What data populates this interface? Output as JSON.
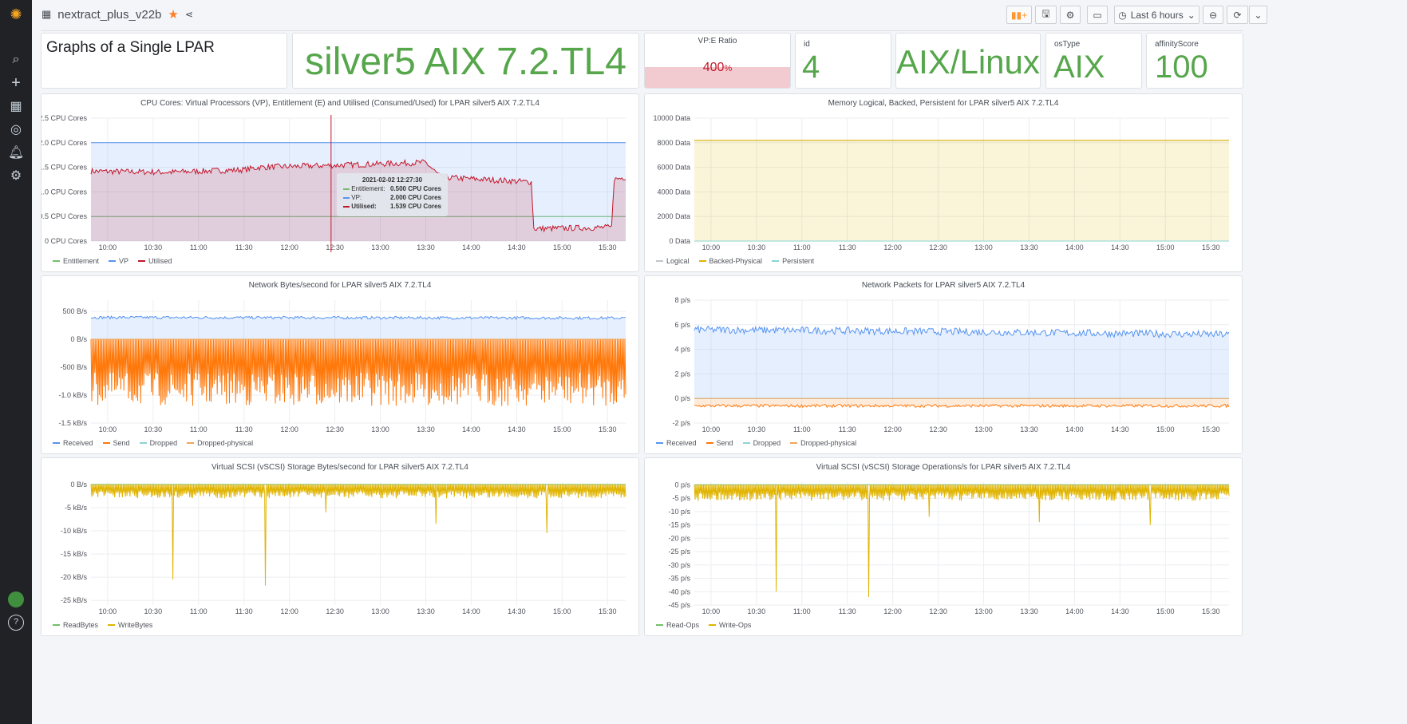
{
  "header": {
    "dashboard_title": "nextract_plus_v22b",
    "time_range": "Last 6 hours"
  },
  "sidebar": {
    "icons": [
      "grafana-logo",
      "search-icon",
      "plus-icon",
      "dashboards-icon",
      "explore-icon",
      "alert-bell-icon",
      "gear-icon",
      "user-avatar",
      "help-icon"
    ]
  },
  "stats": {
    "text_panel": "Graphs of a Single LPAR",
    "lpar_name": "silver5 AIX 7.2.TL4",
    "vpe_title": "VP:E Ratio",
    "vpe_value": "400",
    "vpe_unit": "%",
    "vpe_percent": 400,
    "id_title": "id",
    "id_value": "4",
    "platform": "AIX/Linux",
    "ostype_title": "osType",
    "ostype_value": "AIX",
    "affinity_title": "affinityScore",
    "affinity_value": "100"
  },
  "colors": {
    "green": "#56a64b",
    "red": "#c4162a",
    "blue": "#5794f2",
    "orange": "#ff780a",
    "yellow": "#e0b400",
    "teal": "#8ab8ff"
  },
  "tooltip": {
    "time": "2021-02-02 12:27:30",
    "rows": [
      {
        "label": "Entitlement:",
        "value": "0.500 CPU Cores"
      },
      {
        "label": "VP:",
        "value": "2.000 CPU Cores"
      },
      {
        "label": "Utilised:",
        "value": "1.539 CPU Cores"
      }
    ]
  },
  "chart_data": [
    {
      "id": "cpu",
      "type": "line",
      "title": "CPU Cores: Virtual Processors (VP), Entitlement (E) and Utilised (Consumed/Used) for LPAR silver5 AIX 7.2.TL4",
      "ylim": [
        0,
        2.5
      ],
      "yticks": [
        [
          0,
          "0 CPU Cores"
        ],
        [
          0.5,
          "0.5 CPU Cores"
        ],
        [
          1,
          "1.0 CPU Cores"
        ],
        [
          1.5,
          "1.5 CPU Cores"
        ],
        [
          2,
          "2.0 CPU Cores"
        ],
        [
          2.5,
          "2.5 CPU Cores"
        ]
      ],
      "series": [
        {
          "name": "Entitlement",
          "color": "#73bf69",
          "points": [
            [
              589,
              0.5
            ],
            [
              942,
              0.5
            ]
          ],
          "noise": 0
        },
        {
          "name": "VP",
          "color": "#5794f2",
          "fill": true,
          "points": [
            [
              589,
              2
            ],
            [
              942,
              2
            ]
          ],
          "noise": 0
        },
        {
          "name": "Utilised",
          "color": "#c4162a",
          "fill": true,
          "points": [
            [
              589,
              1.42
            ],
            [
              640,
              1.4
            ],
            [
              690,
              1.45
            ],
            [
              700,
              1.5
            ],
            [
              760,
              1.55
            ],
            [
              810,
              1.6
            ],
            [
              820,
              1.3
            ],
            [
              880,
              1.2
            ],
            [
              881,
              0.25
            ],
            [
              933,
              0.28
            ],
            [
              934,
              1.25
            ],
            [
              942,
              1.3
            ]
          ],
          "noise": 0.06
        }
      ]
    },
    {
      "id": "mem",
      "type": "area",
      "title": "Memory Logical, Backed, Persistent for LPAR silver5 AIX 7.2.TL4",
      "ylim": [
        0,
        10000
      ],
      "yticks": [
        [
          0,
          "0 Data"
        ],
        [
          2000,
          "2000 Data"
        ],
        [
          4000,
          "4000 Data"
        ],
        [
          6000,
          "6000 Data"
        ],
        [
          8000,
          "8000 Data"
        ],
        [
          10000,
          "10000 Data"
        ]
      ],
      "series": [
        {
          "name": "Logical",
          "color": "#c0c4c8",
          "points": [
            [
              589,
              8192
            ],
            [
              942,
              8192
            ]
          ],
          "noise": 0
        },
        {
          "name": "Backed-Physical",
          "color": "#e0b400",
          "fill": true,
          "points": [
            [
              589,
              8192
            ],
            [
              942,
              8192
            ]
          ],
          "noise": 0
        },
        {
          "name": "Persistent",
          "color": "#8ad4d4",
          "points": [
            [
              589,
              0
            ],
            [
              942,
              0
            ]
          ],
          "noise": 0
        }
      ]
    },
    {
      "id": "netbytes",
      "type": "line",
      "title": "Network Bytes/second for LPAR silver5 AIX 7.2.TL4",
      "ylim": [
        -1500,
        700
      ],
      "yticks": [
        [
          -1500,
          "-1.5 kB/s"
        ],
        [
          -1000,
          "-1.0 kB/s"
        ],
        [
          -500,
          "-500 B/s"
        ],
        [
          0,
          "0 B/s"
        ],
        [
          500,
          "500 B/s"
        ]
      ],
      "series": [
        {
          "name": "Received",
          "color": "#5794f2",
          "fill": true,
          "points": [
            [
              589,
              390
            ],
            [
              942,
              380
            ]
          ],
          "noise": 25
        },
        {
          "name": "Send",
          "color": "#ff780a",
          "fill": true,
          "points": [
            [
              589,
              -1000
            ],
            [
              942,
              -1000
            ]
          ],
          "osc": [
            0,
            -1000
          ]
        },
        {
          "name": "Dropped",
          "color": "#8ad4d4",
          "points": [
            [
              589,
              0
            ],
            [
              942,
              0
            ]
          ],
          "noise": 0
        },
        {
          "name": "Dropped-physical",
          "color": "#f2a45c",
          "points": [
            [
              589,
              0
            ],
            [
              942,
              0
            ]
          ],
          "noise": 0
        }
      ]
    },
    {
      "id": "netpkts",
      "type": "line",
      "title": "Network Packets for LPAR silver5 AIX 7.2.TL4",
      "ylim": [
        -2,
        8
      ],
      "yticks": [
        [
          -2,
          "-2 p/s"
        ],
        [
          0,
          "0 p/s"
        ],
        [
          2,
          "2 p/s"
        ],
        [
          4,
          "4 p/s"
        ],
        [
          6,
          "6 p/s"
        ],
        [
          8,
          "8 p/s"
        ]
      ],
      "series": [
        {
          "name": "Received",
          "color": "#5794f2",
          "fill": true,
          "points": [
            [
              589,
              5.6
            ],
            [
              700,
              5.5
            ],
            [
              942,
              5.2
            ]
          ],
          "noise": 0.3
        },
        {
          "name": "Send",
          "color": "#ff780a",
          "fill": true,
          "points": [
            [
              589,
              -0.6
            ],
            [
              942,
              -0.6
            ]
          ],
          "noise": 0.12
        },
        {
          "name": "Dropped",
          "color": "#8ad4d4",
          "points": [
            [
              589,
              0
            ],
            [
              942,
              0
            ]
          ],
          "noise": 0
        },
        {
          "name": "Dropped-physical",
          "color": "#f2a45c",
          "points": [
            [
              589,
              0
            ],
            [
              942,
              0
            ]
          ],
          "noise": 0
        }
      ]
    },
    {
      "id": "scsibytes",
      "type": "line",
      "title": "Virtual SCSI (vSCSI) Storage Bytes/second for LPAR silver5 AIX 7.2.TL4",
      "ylim": [
        -26000,
        500
      ],
      "yticks": [
        [
          -25000,
          "-25 kB/s"
        ],
        [
          -20000,
          "-20 kB/s"
        ],
        [
          -15000,
          "-15 kB/s"
        ],
        [
          -10000,
          "-10 kB/s"
        ],
        [
          -5000,
          "-5 kB/s"
        ],
        [
          0,
          "0 B/s"
        ]
      ],
      "series": [
        {
          "name": "ReadBytes",
          "color": "#73bf69",
          "points": [
            [
              589,
              0
            ],
            [
              942,
              0
            ]
          ],
          "noise": 0
        },
        {
          "name": "WriteBytes",
          "color": "#e0b400",
          "fill": true,
          "points": [
            [
              589,
              -2500
            ],
            [
              942,
              -2500
            ]
          ],
          "osc": [
            0,
            -2500
          ],
          "spikes": [
            [
              643,
              -20500
            ],
            [
              704,
              -21800
            ],
            [
              744,
              -6000
            ],
            [
              817,
              -8500
            ],
            [
              890,
              -10500
            ]
          ]
        }
      ]
    },
    {
      "id": "scsiops",
      "type": "line",
      "title": "Virtual SCSI (vSCSI) Storage Operations/s for LPAR silver5 AIX 7.2.TL4",
      "ylim": [
        -45,
        1
      ],
      "yticks": [
        [
          -45,
          "-45 p/s"
        ],
        [
          -40,
          "-40 p/s"
        ],
        [
          -35,
          "-35 p/s"
        ],
        [
          -30,
          "-30 p/s"
        ],
        [
          -25,
          "-25 p/s"
        ],
        [
          -20,
          "-20 p/s"
        ],
        [
          -15,
          "-15 p/s"
        ],
        [
          -10,
          "-10 p/s"
        ],
        [
          -5,
          "-5 p/s"
        ],
        [
          0,
          "0 p/s"
        ]
      ],
      "series": [
        {
          "name": "Read-Ops",
          "color": "#73bf69",
          "points": [
            [
              589,
              0
            ],
            [
              942,
              0
            ]
          ],
          "noise": 0
        },
        {
          "name": "Write-Ops",
          "color": "#e0b400",
          "fill": true,
          "points": [
            [
              589,
              -5
            ],
            [
              942,
              -5
            ]
          ],
          "osc": [
            0,
            -5
          ],
          "spikes": [
            [
              643,
              -40
            ],
            [
              704,
              -42
            ],
            [
              744,
              -12
            ],
            [
              817,
              -14
            ],
            [
              890,
              -15
            ]
          ]
        }
      ]
    }
  ],
  "xticks": [
    [
      600,
      "10:00"
    ],
    [
      630,
      "10:30"
    ],
    [
      660,
      "11:00"
    ],
    [
      690,
      "11:30"
    ],
    [
      720,
      "12:00"
    ],
    [
      750,
      "12:30"
    ],
    [
      780,
      "13:00"
    ],
    [
      810,
      "13:30"
    ],
    [
      840,
      "14:00"
    ],
    [
      870,
      "14:30"
    ],
    [
      900,
      "15:00"
    ],
    [
      930,
      "15:30"
    ]
  ],
  "xrange": [
    589,
    942
  ],
  "cursor_minute": 747.5
}
